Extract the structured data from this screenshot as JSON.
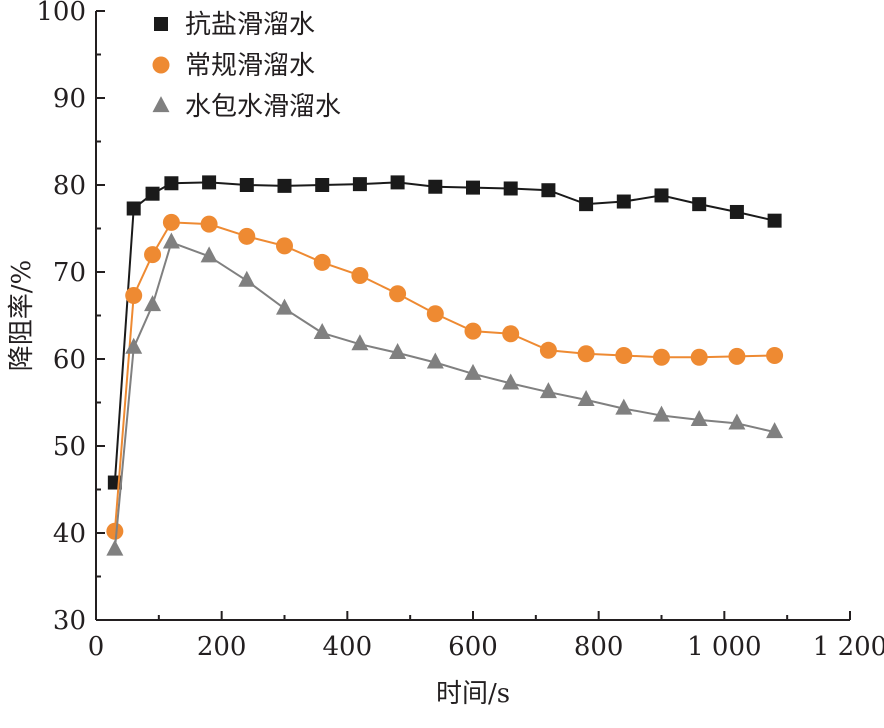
{
  "chart_data": {
    "type": "line",
    "xlabel": "时间/s",
    "ylabel": "降阻率/%",
    "xlim": [
      0,
      1200
    ],
    "ylim": [
      30,
      100
    ],
    "xticks": [
      0,
      200,
      400,
      600,
      800,
      1000,
      1200
    ],
    "xtick_labels": [
      "0",
      "200",
      "400",
      "600",
      "800",
      "1 000",
      "1 200"
    ],
    "yticks": [
      30,
      40,
      50,
      60,
      70,
      80,
      90,
      100
    ],
    "ytick_labels": [
      "30",
      "40",
      "50",
      "60",
      "70",
      "80",
      "90",
      "100"
    ],
    "grid": false,
    "legend_position": "top-left",
    "series": [
      {
        "name": "抗盐滑溜水",
        "marker": "square",
        "color": "#1a1a1a",
        "x": [
          30,
          60,
          90,
          120,
          180,
          240,
          300,
          360,
          420,
          480,
          540,
          600,
          660,
          720,
          780,
          840,
          900,
          960,
          1020,
          1080
        ],
        "y": [
          45.8,
          77.3,
          79.0,
          80.2,
          80.3,
          80.0,
          79.9,
          80.0,
          80.1,
          80.3,
          79.8,
          79.7,
          79.6,
          79.4,
          77.8,
          78.1,
          78.8,
          77.8,
          76.9,
          75.9
        ]
      },
      {
        "name": "常规滑溜水",
        "marker": "circle",
        "color": "#ee8a32",
        "x": [
          30,
          60,
          90,
          120,
          180,
          240,
          300,
          360,
          420,
          480,
          540,
          600,
          660,
          720,
          780,
          840,
          900,
          960,
          1020,
          1080
        ],
        "y": [
          40.2,
          67.3,
          72.0,
          75.7,
          75.5,
          74.1,
          73.0,
          71.1,
          69.6,
          67.5,
          65.2,
          63.2,
          62.9,
          61.0,
          60.6,
          60.4,
          60.2,
          60.2,
          60.3,
          60.4
        ]
      },
      {
        "name": "水包水滑溜水",
        "marker": "triangle",
        "color": "#808080",
        "x": [
          30,
          60,
          90,
          120,
          180,
          240,
          300,
          360,
          420,
          480,
          540,
          600,
          660,
          720,
          780,
          840,
          900,
          960,
          1020,
          1080
        ],
        "y": [
          38.1,
          61.3,
          66.2,
          73.4,
          71.8,
          69.0,
          65.8,
          63.0,
          61.7,
          60.7,
          59.6,
          58.3,
          57.2,
          56.2,
          55.3,
          54.3,
          53.5,
          53.0,
          52.6,
          51.6
        ]
      }
    ]
  }
}
